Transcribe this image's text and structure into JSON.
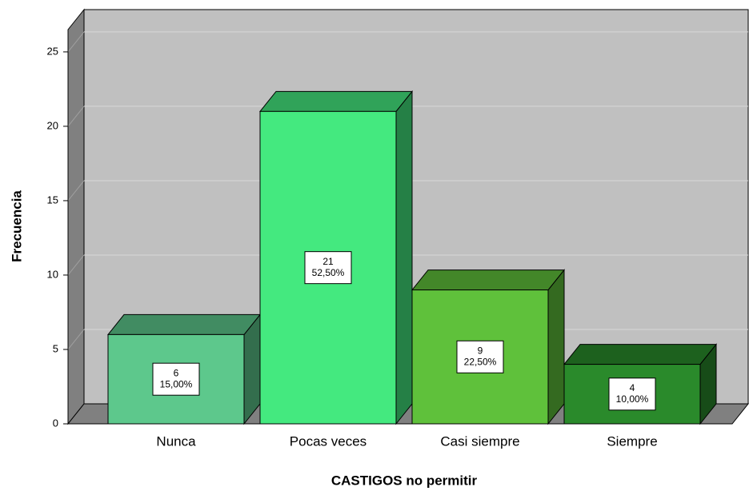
{
  "chart_data": {
    "type": "bar3d",
    "x_label": "CASTIGOS no permitir",
    "y_label": "Frecuencia",
    "categories": [
      "Nunca",
      "Pocas veces",
      "Casi siempre",
      "Siempre"
    ],
    "values": [
      6,
      21,
      9,
      4
    ],
    "percent_labels": [
      "15,00%",
      "52,50%",
      "22,50%",
      "10,00%"
    ],
    "colors": [
      "#5dc88c",
      "#44e97f",
      "#5fc13b",
      "#2a8a2b"
    ],
    "ylim": [
      0,
      26.5
    ],
    "yticks": [
      0,
      5,
      10,
      15,
      20,
      25
    ],
    "grid": true
  }
}
